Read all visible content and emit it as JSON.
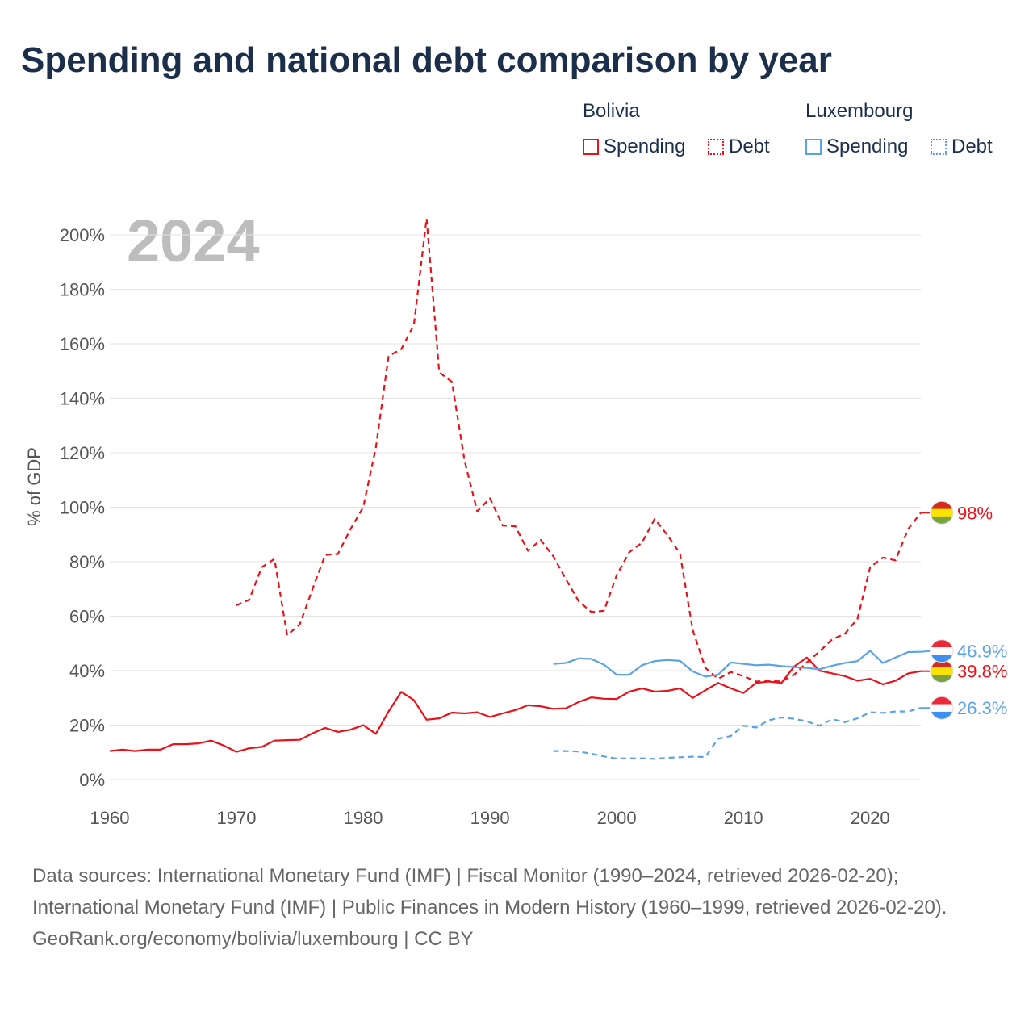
{
  "title": "Spending and national debt comparison by year",
  "legend": {
    "groups": [
      {
        "country": "Bolivia",
        "items": [
          "Spending",
          "Debt"
        ]
      },
      {
        "country": "Luxembourg",
        "items": [
          "Spending",
          "Debt"
        ]
      }
    ]
  },
  "colors": {
    "bolivia": "#e8121a",
    "luxembourg": "#5ba3e6",
    "title": "#1b2f4b",
    "axis_text": "#555555",
    "year_watermark": "#bdbdbd"
  },
  "footer": {
    "sources": "Data sources: International Monetary Fund (IMF) | Fiscal Monitor (1990–2024, retrieved 2026-02-20); International Monetary Fund (IMF) | Public Finances in Modern History (1960–1999, retrieved 2026-02-20).",
    "credit": "GeoRank.org/economy/bolivia/luxembourg | CC BY"
  },
  "chart_data": {
    "type": "line",
    "year_label": "2024",
    "ylabel": "% of GDP",
    "xlim": [
      1960,
      2024
    ],
    "ylim": [
      0,
      200
    ],
    "x_ticks": [
      1960,
      1970,
      1980,
      1990,
      2000,
      2010,
      2020
    ],
    "y_ticks": [
      0,
      20,
      40,
      60,
      80,
      100,
      120,
      140,
      160,
      180,
      200
    ],
    "y_tick_labels": [
      "0%",
      "20%",
      "40%",
      "60%",
      "80%",
      "100%",
      "120%",
      "140%",
      "160%",
      "180%",
      "200%"
    ],
    "series": [
      {
        "name": "Bolivia Spending",
        "country": "bolivia",
        "style": "solid",
        "end_label": "39.8%",
        "x": [
          1960,
          1961,
          1962,
          1963,
          1964,
          1965,
          1966,
          1967,
          1968,
          1969,
          1970,
          1971,
          1972,
          1973,
          1974,
          1975,
          1976,
          1977,
          1978,
          1979,
          1980,
          1981,
          1982,
          1983,
          1984,
          1985,
          1986,
          1987,
          1988,
          1989,
          1990,
          1991,
          1992,
          1993,
          1994,
          1995,
          1996,
          1997,
          1998,
          1999,
          2000,
          2001,
          2002,
          2003,
          2004,
          2005,
          2006,
          2007,
          2008,
          2009,
          2010,
          2011,
          2012,
          2013,
          2014,
          2015,
          2016,
          2017,
          2018,
          2019,
          2020,
          2021,
          2022,
          2023,
          2024
        ],
        "values": [
          10.5,
          11,
          10.5,
          11,
          11,
          13,
          13,
          13.3,
          14.3,
          12.5,
          10.2,
          11.5,
          12,
          14.3,
          14.5,
          14.6,
          17,
          19,
          17.5,
          18.3,
          20,
          16.8,
          25,
          32.2,
          29.2,
          22,
          22.5,
          24.6,
          24.3,
          24.7,
          23,
          24.3,
          25.5,
          27.3,
          26.9,
          26,
          26.2,
          28.5,
          30.2,
          29.7,
          29.6,
          32.3,
          33.5,
          32.3,
          32.6,
          33.5,
          30,
          32.8,
          35.5,
          33.5,
          31.8,
          35.5,
          36,
          35.5,
          41.5,
          44.8,
          40,
          39,
          38,
          36.3,
          37,
          35,
          36.3,
          39,
          39.8
        ]
      },
      {
        "name": "Bolivia Debt",
        "country": "bolivia",
        "style": "dashed",
        "end_label": "98%",
        "x": [
          1970,
          1971,
          1972,
          1973,
          1974,
          1975,
          1976,
          1977,
          1978,
          1979,
          1980,
          1981,
          1982,
          1983,
          1984,
          1985,
          1986,
          1987,
          1988,
          1989,
          1990,
          1991,
          1992,
          1993,
          1994,
          1995,
          1996,
          1997,
          1998,
          1999,
          2000,
          2001,
          2002,
          2003,
          2004,
          2005,
          2006,
          2007,
          2008,
          2009,
          2010,
          2011,
          2012,
          2013,
          2014,
          2015,
          2016,
          2017,
          2018,
          2019,
          2020,
          2021,
          2022,
          2023,
          2024
        ],
        "values": [
          64,
          66,
          78,
          81,
          53,
          57,
          70,
          82.5,
          82.8,
          92,
          100,
          122,
          155.5,
          158,
          167,
          206,
          149.5,
          146,
          117,
          98.5,
          103.3,
          93.3,
          93,
          84,
          88,
          82,
          73.5,
          65.5,
          61.5,
          62,
          75,
          83.5,
          87,
          95.7,
          89.8,
          83,
          55,
          41,
          37,
          39.5,
          38,
          36,
          36.3,
          36,
          38.5,
          43,
          47,
          51.5,
          53.5,
          59,
          78,
          81.5,
          80.5,
          92,
          98
        ]
      },
      {
        "name": "Luxembourg Spending",
        "country": "luxembourg",
        "style": "solid",
        "end_label": "46.9%",
        "x": [
          1995,
          1996,
          1997,
          1998,
          1999,
          2000,
          2001,
          2002,
          2003,
          2004,
          2005,
          2006,
          2007,
          2008,
          2009,
          2010,
          2011,
          2012,
          2013,
          2014,
          2015,
          2016,
          2017,
          2018,
          2019,
          2020,
          2021,
          2022,
          2023,
          2024
        ],
        "values": [
          42.5,
          42.8,
          44.5,
          44.3,
          42.2,
          38.5,
          38.5,
          42,
          43.5,
          43.9,
          43.6,
          39.7,
          37.8,
          38.5,
          43,
          42.5,
          42,
          42.2,
          41.7,
          41.3,
          41,
          40.5,
          41.8,
          42.8,
          43.5,
          47.3,
          42.8,
          44.8,
          46.8,
          46.9
        ]
      },
      {
        "name": "Luxembourg Debt",
        "country": "luxembourg",
        "style": "dashed",
        "end_label": "26.3%",
        "x": [
          1995,
          1996,
          1997,
          1998,
          1999,
          2000,
          2001,
          2002,
          2003,
          2004,
          2005,
          2006,
          2007,
          2008,
          2009,
          2010,
          2011,
          2012,
          2013,
          2014,
          2015,
          2016,
          2017,
          2018,
          2019,
          2020,
          2021,
          2022,
          2023,
          2024
        ],
        "values": [
          10.5,
          10.5,
          10.3,
          9.5,
          8.5,
          7.7,
          7.8,
          7.8,
          7.6,
          8,
          8.2,
          8.4,
          8.3,
          15,
          16,
          19.8,
          19.1,
          21.8,
          22.8,
          22.3,
          21.4,
          19.8,
          22.2,
          21.1,
          22.5,
          24.7,
          24.5,
          25,
          25,
          26.3
        ]
      }
    ]
  }
}
